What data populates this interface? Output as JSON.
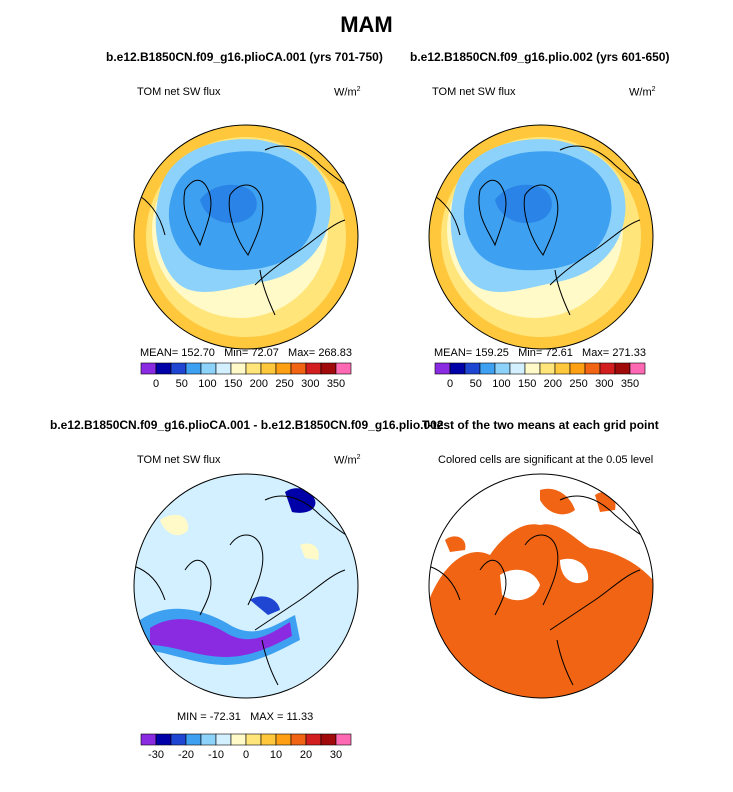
{
  "title": "MAM",
  "panels": [
    {
      "heading": "b.e12.B1850CN.f09_g16.plioCA.001 (yrs 701-750)",
      "variable": "TOM net SW flux",
      "units": "W/m",
      "units_exp": "2",
      "stats": {
        "mean_label": "MEAN=",
        "mean": "152.70",
        "min_label": "Min=",
        "min": "72.07",
        "max_label": "Max=",
        "max": "268.83"
      }
    },
    {
      "heading": "b.e12.B1850CN.f09_g16.plio.002 (yrs 601-650)",
      "variable": "TOM net SW flux",
      "units": "W/m",
      "units_exp": "2",
      "stats": {
        "mean_label": "MEAN=",
        "mean": "159.25",
        "min_label": "Min=",
        "min": "72.61",
        "max_label": "Max=",
        "max": "271.33"
      }
    },
    {
      "heading": "b.e12.B1850CN.f09_g16.plioCA.001 - b.e12.B1850CN.f09_g16.plio.002",
      "variable": "TOM net SW flux",
      "units": "W/m",
      "units_exp": "2",
      "stats": {
        "min_label": "MIN =",
        "min": "-72.31",
        "max_label": "MAX =",
        "max": "11.33"
      }
    },
    {
      "heading": "T-test of the two means at each grid point",
      "subtitle": "Colored cells are significant at the 0.05 level"
    }
  ],
  "colorbars": {
    "absolute": {
      "labels": [
        "0",
        "50",
        "100",
        "150",
        "200",
        "250",
        "300",
        "350"
      ],
      "colors": [
        "#8a2be2",
        "#0000a8",
        "#1e46d2",
        "#3ea0f0",
        "#8cd2fa",
        "#d2f0ff",
        "#fffac8",
        "#ffe57a",
        "#ffc83c",
        "#ffa014",
        "#f06414",
        "#d21e1e",
        "#a00a0a",
        "#ff69b4"
      ]
    },
    "difference": {
      "labels": [
        "-30",
        "-20",
        "-10",
        "0",
        "10",
        "20",
        "30"
      ],
      "colors": [
        "#8a2be2",
        "#0000a8",
        "#1e46d2",
        "#3ea0f0",
        "#8cd2fa",
        "#d2f0ff",
        "#fffac8",
        "#ffe57a",
        "#ffc83c",
        "#ffa014",
        "#f06414",
        "#d21e1e",
        "#a00a0a",
        "#ff69b4"
      ]
    }
  },
  "chart_data": [
    {
      "type": "heatmap",
      "projection": "north polar stereographic",
      "title": "b.e12.B1850CN.f09_g16.plioCA.001 (yrs 701-750)",
      "variable": "TOM net SW flux",
      "units": "W/m2",
      "colorbar_ticks": [
        0,
        50,
        100,
        150,
        200,
        250,
        300,
        350
      ],
      "mean": 152.7,
      "min": 72.07,
      "max": 268.83
    },
    {
      "type": "heatmap",
      "projection": "north polar stereographic",
      "title": "b.e12.B1850CN.f09_g16.plio.002 (yrs 601-650)",
      "variable": "TOM net SW flux",
      "units": "W/m2",
      "colorbar_ticks": [
        0,
        50,
        100,
        150,
        200,
        250,
        300,
        350
      ],
      "mean": 159.25,
      "min": 72.61,
      "max": 271.33
    },
    {
      "type": "heatmap",
      "projection": "north polar stereographic",
      "title": "b.e12.B1850CN.f09_g16.plioCA.001 - b.e12.B1850CN.f09_g16.plio.002",
      "variable": "TOM net SW flux",
      "units": "W/m2",
      "colorbar_ticks": [
        -30,
        -20,
        -10,
        0,
        10,
        20,
        30
      ],
      "min": -72.31,
      "max": 11.33
    },
    {
      "type": "heatmap",
      "projection": "north polar stereographic",
      "title": "T-test of the two means at each grid point",
      "subtitle": "Colored cells are significant at the 0.05 level",
      "significance_level": 0.05
    }
  ]
}
